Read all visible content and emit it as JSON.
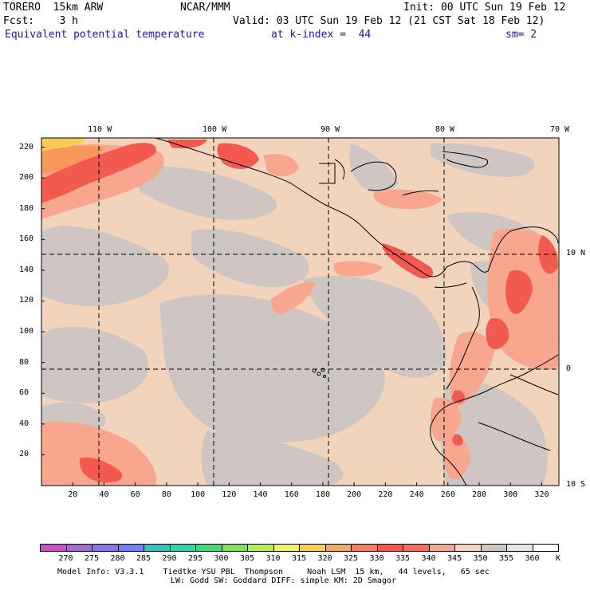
{
  "header": {
    "line1_left": "TORERO  15km ARW",
    "line1_mid": "NCAR/MMM",
    "line1_right": "Init: 00 UTC Sun 19 Feb 12",
    "line2_left": "Fcst:    3 h",
    "line2_right": "Valid: 03 UTC Sun 19 Feb 12 (21 CST Sat 18 Feb 12)",
    "line3_field": "Equivalent potential temperature",
    "line3_level": "at k-index =  44",
    "line3_smooth": "sm= 2"
  },
  "map": {
    "lon_labels": [
      "110 W",
      "100 W",
      "90 W",
      "80 W",
      "70 W"
    ],
    "lat_labels": [
      "10 N",
      "0",
      "10 S"
    ],
    "y_grid_labels": [
      "220",
      "200",
      "180",
      "160",
      "140",
      "120",
      "100",
      "80",
      "60",
      "40",
      "20"
    ],
    "x_grid_labels": [
      "20",
      "40",
      "60",
      "80",
      "100",
      "120",
      "140",
      "160",
      "180",
      "200",
      "220",
      "240",
      "260",
      "280",
      "300",
      "320"
    ],
    "colors": {
      "background_tan": "#f2d4bd",
      "gray": "#cec6c2",
      "salmon": "#f8a68e",
      "red": "#f25a4f",
      "orange": "#f79858",
      "coast": "#000000"
    }
  },
  "colorbar": {
    "labels": [
      "270",
      "275",
      "280",
      "285",
      "290",
      "295",
      "300",
      "305",
      "310",
      "315",
      "320",
      "325",
      "330",
      "335",
      "340",
      "345",
      "350",
      "355",
      "360"
    ],
    "unit": "K",
    "colors": [
      "#c653c6",
      "#a56bd6",
      "#8a75e6",
      "#6f80f0",
      "#3dbdbd",
      "#2fd6a8",
      "#45d67a",
      "#7ee35c",
      "#b8ec57",
      "#eef06a",
      "#f7cc57",
      "#f7a860",
      "#f77f5f",
      "#f2564d",
      "#f26b5f",
      "#f7a591",
      "#f2d4bd",
      "#cec6c2",
      "#e6e6e6",
      "#ffffff"
    ]
  },
  "footer": {
    "line1": "Model Info: V3.3.1    Tiedtke YSU PBL  Thompson     Noah LSM  15 km,   44 levels,   65 sec",
    "line2": "LW: Godd SW: Goddard DIFF: simple KM: 2D Smagor"
  }
}
